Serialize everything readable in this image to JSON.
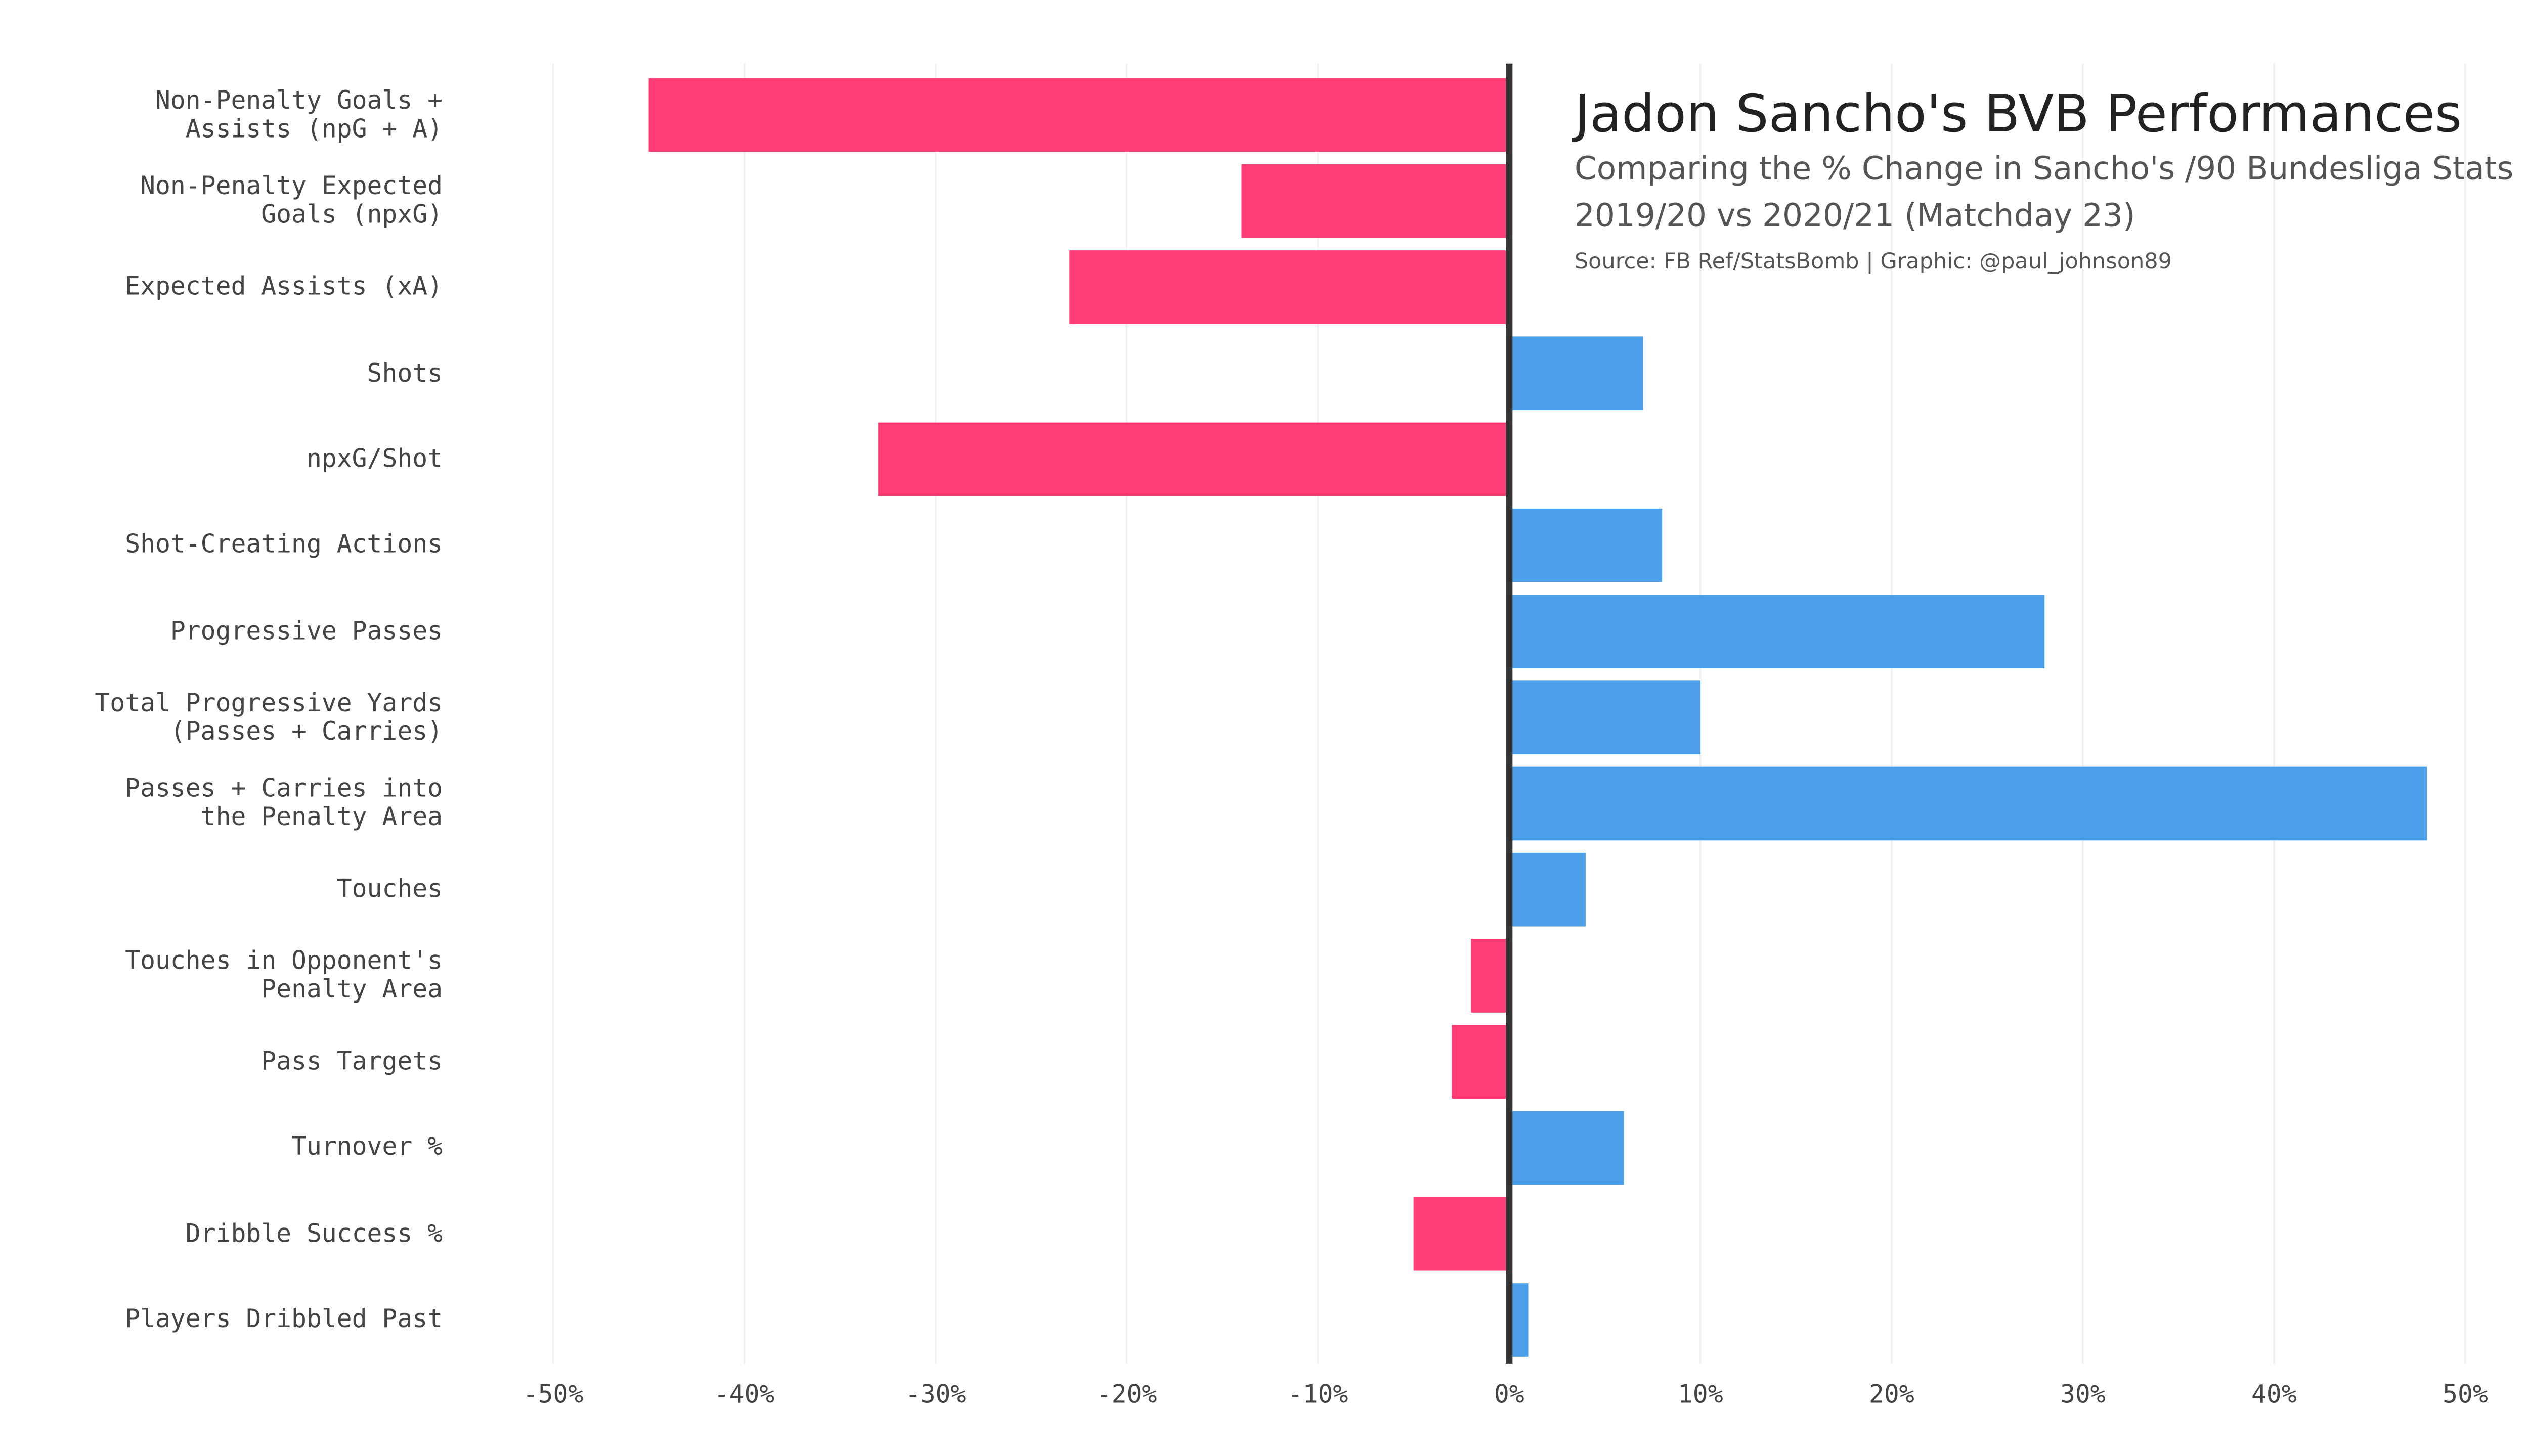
{
  "chart_data": {
    "type": "barh",
    "title": "Jadon Sancho's BVB Performances",
    "subtitle": [
      "Comparing the % Change in Sancho's /90 Bundesliga Stats",
      "2019/20 vs 2020/21 (Matchday 23)"
    ],
    "source": "Source: FB Ref/StatsBomb | Graphic: @paul_johnson89",
    "categories": [
      "Non-Penalty Goals +\nAssists (npG + A)",
      "Non-Penalty Expected\nGoals (npxG)",
      "Expected Assists (xA)",
      "Shots",
      "npxG/Shot",
      "Shot-Creating Actions",
      "Progressive Passes",
      "Total Progressive Yards\n(Passes + Carries)",
      "Passes + Carries into\nthe Penalty Area",
      "Touches",
      "Touches in Opponent's\nPenalty Area",
      "Pass Targets",
      "Turnover %",
      "Dribble Success %",
      "Players Dribbled Past"
    ],
    "values": [
      -45,
      -14,
      -23,
      7,
      -33,
      8,
      28,
      10,
      48,
      4,
      -2,
      -3,
      6,
      -5,
      1
    ],
    "colors": {
      "positive": "#4a9fe8",
      "negative": "#ff3d74"
    },
    "xlim": [
      -50,
      50
    ],
    "xticks": [
      {
        "value": -50,
        "label": "-50%"
      },
      {
        "value": -40,
        "label": "-40%"
      },
      {
        "value": -30,
        "label": "-30%"
      },
      {
        "value": -20,
        "label": "-20%"
      },
      {
        "value": -10,
        "label": "-10%"
      },
      {
        "value": 0,
        "label": "0%"
      },
      {
        "value": 10,
        "label": "10%"
      },
      {
        "value": 20,
        "label": "20%"
      },
      {
        "value": 30,
        "label": "30%"
      },
      {
        "value": 40,
        "label": "40%"
      },
      {
        "value": 50,
        "label": "50%"
      }
    ],
    "grid": true
  }
}
